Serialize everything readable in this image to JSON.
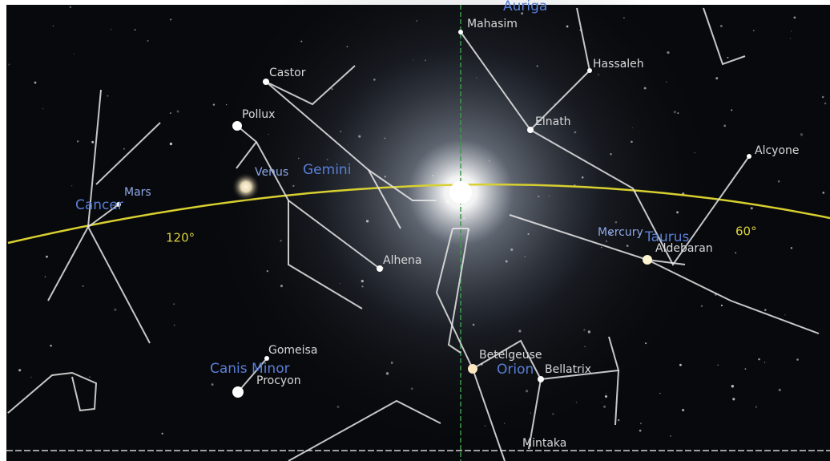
{
  "sky": {
    "constellations": [
      "Auriga",
      "Gemini",
      "Cancer",
      "Taurus",
      "Canis Minor",
      "Orion"
    ],
    "stars": [
      "Mahasim",
      "Hassaleh",
      "Elnath",
      "Castor",
      "Pollux",
      "Alhena",
      "Gomeisa",
      "Procyon",
      "Betelgeuse",
      "Bellatrix",
      "Aldebaran",
      "Alcyone",
      "Mintaka"
    ],
    "planets": [
      "Mars",
      "Venus",
      "Mercury"
    ],
    "ecliptic_labels": [
      "120°",
      "60°"
    ]
  }
}
